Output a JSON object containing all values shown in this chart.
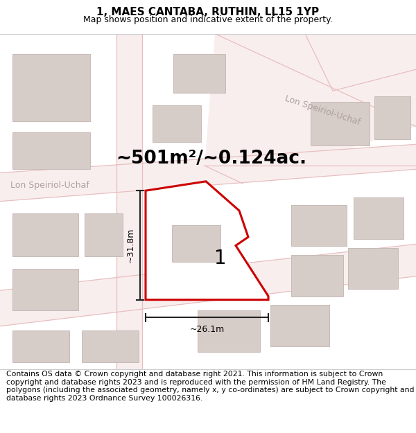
{
  "title": "1, MAES CANTABA, RUTHIN, LL15 1YP",
  "subtitle": "Map shows position and indicative extent of the property.",
  "area_text": "~501m²/~0.124ac.",
  "label_1": "1",
  "dim_height": "~31.8m",
  "dim_width": "~26.1m",
  "street_label_left": "Lon Speiriol-Uchaf",
  "street_label_top": "Lon Speiriol-Uchaf",
  "footer": "Contains OS data © Crown copyright and database right 2021. This information is subject to Crown copyright and database rights 2023 and is reproduced with the permission of HM Land Registry. The polygons (including the associated geometry, namely x, y co-ordinates) are subject to Crown copyright and database rights 2023 Ordnance Survey 100026316.",
  "bg_color": "#ffffff",
  "map_bg": "#f8f3f0",
  "road_fill": "#f9eeee",
  "road_line": "#e8bebe",
  "building_fill": "#d6ccc8",
  "building_edge": "#c8bab6",
  "plot_fill": "#ffffff",
  "plot_edge": "#cc0000",
  "dim_color": "#222222",
  "street_color": "#b0a0a0",
  "title_fontsize": 11,
  "subtitle_fontsize": 9,
  "area_fontsize": 19,
  "label_fontsize": 20,
  "street_fontsize": 9,
  "dim_fontsize": 9,
  "footer_fontsize": 7.8
}
